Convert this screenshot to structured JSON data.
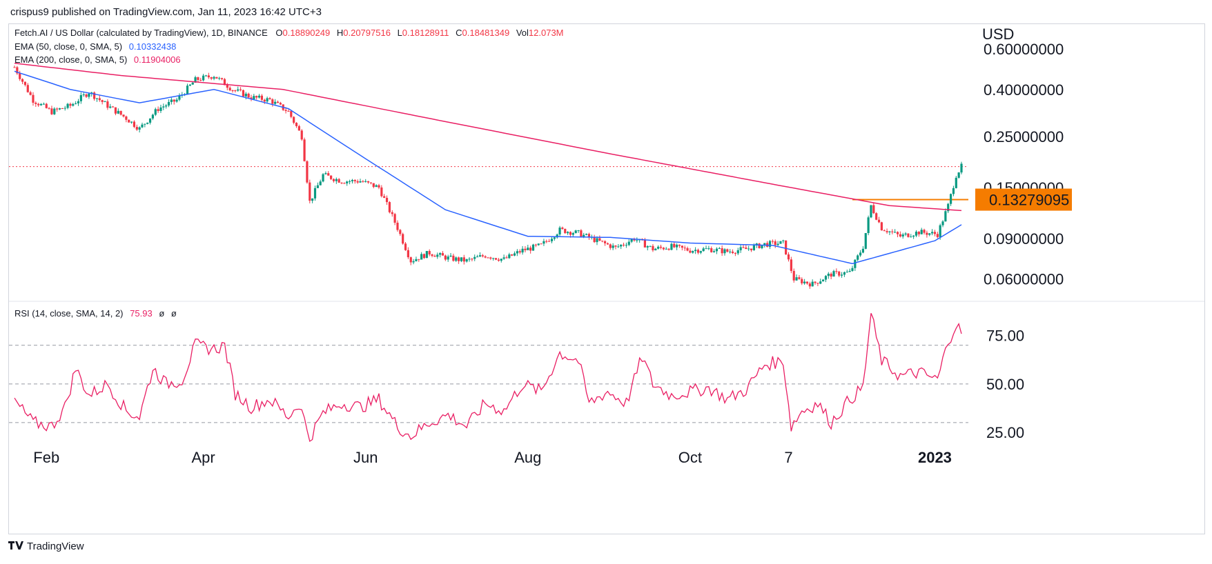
{
  "header": {
    "publisher_line": "crispus9 published on TradingView.com, Jan 11, 2023 16:42 UTC+3"
  },
  "footer": {
    "logo_text": "TradingView",
    "logo_icon": "tradingview-logo-icon"
  },
  "legend": {
    "symbol_line": {
      "name": "Fetch.AI / US Dollar (calculated by TradingView), 1D, BINANCE",
      "o_label": "O",
      "o_value": "0.18890249",
      "h_label": "H",
      "h_value": "0.20797516",
      "l_label": "L",
      "l_value": "0.18128911",
      "c_label": "C",
      "c_value": "0.18481349",
      "vol_label": "Vol",
      "vol_value": "12.073M"
    },
    "ema50": {
      "label": "EMA (50, close, 0, SMA, 5)",
      "value": "0.10332438"
    },
    "ema200": {
      "label": "EMA (200, close, 0, SMA, 5)",
      "value": "0.11904006"
    },
    "rsi": {
      "label": "RSI (14, close, SMA, 14, 2)",
      "value": "75.93",
      "extra1": "ø",
      "extra2": "ø"
    }
  },
  "colors": {
    "up": "#089981",
    "down": "#f23645",
    "ema50": "#2962ff",
    "ema200": "#e91e63",
    "rsi": "#e91e63",
    "price_tag": "#f57c00",
    "hline": "#f57c00",
    "last_price_line": "#f23645"
  },
  "chart_data": [
    {
      "type": "candlestick",
      "title": "Fetch.AI / US Dollar (calculated by TradingView), 1D, BINANCE",
      "ylabel": "USD",
      "yscale": "log",
      "ylim": [
        0.048,
        0.6
      ],
      "y_ticks": [
        "0.06000000",
        "0.09000000",
        "0.15000000",
        "0.25000000",
        "0.40000000",
        "0.60000000"
      ],
      "x_ticks": [
        "Feb",
        "Apr",
        "Jun",
        "Aug",
        "Oct",
        "7",
        "2023"
      ],
      "x_range": [
        "2022-01-20",
        "2023-01-11"
      ],
      "price_tag": "0.13279095",
      "horizontal_level": 0.13279095,
      "last_close": 0.18481349,
      "close_series": [
        {
          "date": "2022-01-20",
          "value": 0.5
        },
        {
          "date": "2022-01-27",
          "value": 0.36
        },
        {
          "date": "2022-02-03",
          "value": 0.32
        },
        {
          "date": "2022-02-10",
          "value": 0.34
        },
        {
          "date": "2022-02-17",
          "value": 0.39
        },
        {
          "date": "2022-02-24",
          "value": 0.34
        },
        {
          "date": "2022-03-03",
          "value": 0.3
        },
        {
          "date": "2022-03-08",
          "value": 0.27
        },
        {
          "date": "2022-03-15",
          "value": 0.33
        },
        {
          "date": "2022-03-22",
          "value": 0.36
        },
        {
          "date": "2022-03-29",
          "value": 0.44
        },
        {
          "date": "2022-04-05",
          "value": 0.46
        },
        {
          "date": "2022-04-12",
          "value": 0.4
        },
        {
          "date": "2022-04-19",
          "value": 0.37
        },
        {
          "date": "2022-04-26",
          "value": 0.36
        },
        {
          "date": "2022-05-03",
          "value": 0.32
        },
        {
          "date": "2022-05-08",
          "value": 0.25
        },
        {
          "date": "2022-05-11",
          "value": 0.13
        },
        {
          "date": "2022-05-16",
          "value": 0.17
        },
        {
          "date": "2022-05-23",
          "value": 0.16
        },
        {
          "date": "2022-05-30",
          "value": 0.16
        },
        {
          "date": "2022-06-06",
          "value": 0.15
        },
        {
          "date": "2022-06-13",
          "value": 0.1
        },
        {
          "date": "2022-06-18",
          "value": 0.072
        },
        {
          "date": "2022-06-25",
          "value": 0.078
        },
        {
          "date": "2022-07-02",
          "value": 0.074
        },
        {
          "date": "2022-07-09",
          "value": 0.072
        },
        {
          "date": "2022-07-16",
          "value": 0.076
        },
        {
          "date": "2022-07-23",
          "value": 0.073
        },
        {
          "date": "2022-07-30",
          "value": 0.08
        },
        {
          "date": "2022-08-06",
          "value": 0.084
        },
        {
          "date": "2022-08-13",
          "value": 0.098
        },
        {
          "date": "2022-08-20",
          "value": 0.095
        },
        {
          "date": "2022-08-27",
          "value": 0.088
        },
        {
          "date": "2022-09-03",
          "value": 0.082
        },
        {
          "date": "2022-09-10",
          "value": 0.09
        },
        {
          "date": "2022-09-17",
          "value": 0.081
        },
        {
          "date": "2022-09-24",
          "value": 0.083
        },
        {
          "date": "2022-10-01",
          "value": 0.08
        },
        {
          "date": "2022-10-08",
          "value": 0.081
        },
        {
          "date": "2022-10-15",
          "value": 0.079
        },
        {
          "date": "2022-10-22",
          "value": 0.081
        },
        {
          "date": "2022-10-29",
          "value": 0.085
        },
        {
          "date": "2022-11-05",
          "value": 0.086
        },
        {
          "date": "2022-11-09",
          "value": 0.06
        },
        {
          "date": "2022-11-16",
          "value": 0.057
        },
        {
          "date": "2022-11-23",
          "value": 0.063
        },
        {
          "date": "2022-11-30",
          "value": 0.064
        },
        {
          "date": "2022-12-05",
          "value": 0.083
        },
        {
          "date": "2022-12-08",
          "value": 0.125
        },
        {
          "date": "2022-12-12",
          "value": 0.1
        },
        {
          "date": "2022-12-19",
          "value": 0.092
        },
        {
          "date": "2022-12-26",
          "value": 0.096
        },
        {
          "date": "2023-01-02",
          "value": 0.094
        },
        {
          "date": "2023-01-06",
          "value": 0.125
        },
        {
          "date": "2023-01-09",
          "value": 0.17
        },
        {
          "date": "2023-01-11",
          "value": 0.18481349
        }
      ],
      "ema50_series": [
        {
          "date": "2022-01-20",
          "value": 0.48
        },
        {
          "date": "2022-02-10",
          "value": 0.4
        },
        {
          "date": "2022-03-08",
          "value": 0.35
        },
        {
          "date": "2022-04-05",
          "value": 0.4
        },
        {
          "date": "2022-05-03",
          "value": 0.33
        },
        {
          "date": "2022-06-01",
          "value": 0.2
        },
        {
          "date": "2022-07-01",
          "value": 0.12
        },
        {
          "date": "2022-08-01",
          "value": 0.092
        },
        {
          "date": "2022-09-01",
          "value": 0.091
        },
        {
          "date": "2022-10-01",
          "value": 0.086
        },
        {
          "date": "2022-11-01",
          "value": 0.084
        },
        {
          "date": "2022-12-01",
          "value": 0.07
        },
        {
          "date": "2023-01-01",
          "value": 0.088
        },
        {
          "date": "2023-01-11",
          "value": 0.10332438
        }
      ],
      "ema200_series": [
        {
          "date": "2022-01-20",
          "value": 0.52
        },
        {
          "date": "2022-03-01",
          "value": 0.46
        },
        {
          "date": "2022-05-01",
          "value": 0.4
        },
        {
          "date": "2022-07-01",
          "value": 0.29
        },
        {
          "date": "2022-09-01",
          "value": 0.21
        },
        {
          "date": "2022-11-01",
          "value": 0.155
        },
        {
          "date": "2022-12-15",
          "value": 0.125
        },
        {
          "date": "2023-01-11",
          "value": 0.11904006
        }
      ]
    },
    {
      "type": "line",
      "title": "RSI (14, close, SMA, 14, 2)",
      "ylim": [
        15,
        92
      ],
      "y_ticks": [
        "25.00",
        "50.00",
        "75.00"
      ],
      "bands": [
        30,
        50,
        70
      ],
      "series": [
        {
          "values": [
            {
              "date": "2022-01-20",
              "value": 41
            },
            {
              "date": "2022-01-27",
              "value": 30
            },
            {
              "date": "2022-02-03",
              "value": 28
            },
            {
              "date": "2022-02-08",
              "value": 38
            },
            {
              "date": "2022-02-12",
              "value": 58
            },
            {
              "date": "2022-02-17",
              "value": 44
            },
            {
              "date": "2022-02-24",
              "value": 50
            },
            {
              "date": "2022-03-03",
              "value": 36
            },
            {
              "date": "2022-03-08",
              "value": 33
            },
            {
              "date": "2022-03-13",
              "value": 58
            },
            {
              "date": "2022-03-18",
              "value": 50
            },
            {
              "date": "2022-03-24",
              "value": 52
            },
            {
              "date": "2022-03-29",
              "value": 70
            },
            {
              "date": "2022-04-05",
              "value": 68
            },
            {
              "date": "2022-04-09",
              "value": 70
            },
            {
              "date": "2022-04-13",
              "value": 45
            },
            {
              "date": "2022-04-19",
              "value": 38
            },
            {
              "date": "2022-04-26",
              "value": 42
            },
            {
              "date": "2022-05-03",
              "value": 33
            },
            {
              "date": "2022-05-07",
              "value": 40
            },
            {
              "date": "2022-05-11",
              "value": 22
            },
            {
              "date": "2022-05-16",
              "value": 35
            },
            {
              "date": "2022-05-23",
              "value": 40
            },
            {
              "date": "2022-05-30",
              "value": 38
            },
            {
              "date": "2022-06-06",
              "value": 42
            },
            {
              "date": "2022-06-13",
              "value": 28
            },
            {
              "date": "2022-06-18",
              "value": 23
            },
            {
              "date": "2022-06-25",
              "value": 30
            },
            {
              "date": "2022-07-02",
              "value": 34
            },
            {
              "date": "2022-07-09",
              "value": 28
            },
            {
              "date": "2022-07-16",
              "value": 40
            },
            {
              "date": "2022-07-23",
              "value": 36
            },
            {
              "date": "2022-07-30",
              "value": 50
            },
            {
              "date": "2022-08-06",
              "value": 46
            },
            {
              "date": "2022-08-13",
              "value": 66
            },
            {
              "date": "2022-08-20",
              "value": 62
            },
            {
              "date": "2022-08-24",
              "value": 40
            },
            {
              "date": "2022-08-31",
              "value": 46
            },
            {
              "date": "2022-09-07",
              "value": 40
            },
            {
              "date": "2022-09-13",
              "value": 64
            },
            {
              "date": "2022-09-17",
              "value": 50
            },
            {
              "date": "2022-09-24",
              "value": 44
            },
            {
              "date": "2022-10-01",
              "value": 46
            },
            {
              "date": "2022-10-08",
              "value": 48
            },
            {
              "date": "2022-10-15",
              "value": 42
            },
            {
              "date": "2022-10-22",
              "value": 47
            },
            {
              "date": "2022-10-29",
              "value": 60
            },
            {
              "date": "2022-11-05",
              "value": 62
            },
            {
              "date": "2022-11-08",
              "value": 28
            },
            {
              "date": "2022-11-12",
              "value": 36
            },
            {
              "date": "2022-11-18",
              "value": 40
            },
            {
              "date": "2022-11-23",
              "value": 30
            },
            {
              "date": "2022-11-30",
              "value": 42
            },
            {
              "date": "2022-12-05",
              "value": 48
            },
            {
              "date": "2022-12-08",
              "value": 86
            },
            {
              "date": "2022-12-12",
              "value": 62
            },
            {
              "date": "2022-12-19",
              "value": 54
            },
            {
              "date": "2022-12-26",
              "value": 56
            },
            {
              "date": "2023-01-02",
              "value": 52
            },
            {
              "date": "2023-01-06",
              "value": 72
            },
            {
              "date": "2023-01-09",
              "value": 81
            },
            {
              "date": "2023-01-11",
              "value": 75.93
            }
          ]
        }
      ]
    }
  ]
}
